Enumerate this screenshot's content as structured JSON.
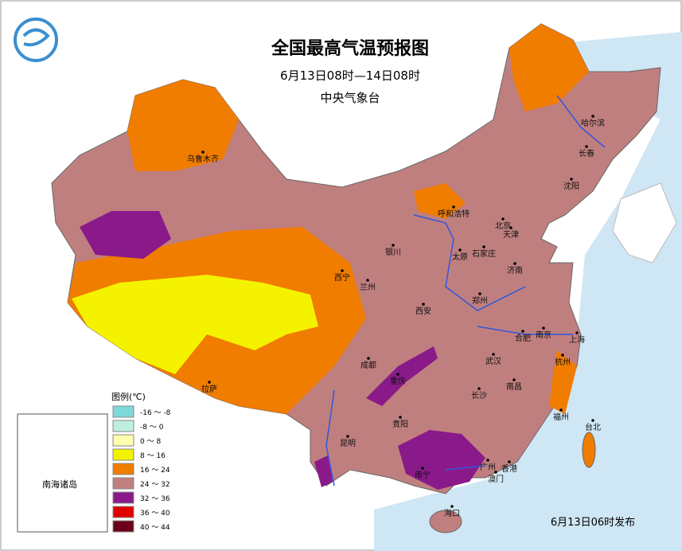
{
  "header": {
    "title": "全国最高气温预报图",
    "time": "6月13日08时—14日08时",
    "agency": "中央气象台"
  },
  "legend": {
    "title": "图例(℃)",
    "items": [
      {
        "label": "-16 ～ -8",
        "color": "#7fd8dc"
      },
      {
        "label": "-8 ～ 0",
        "color": "#bfeee0"
      },
      {
        "label": "0 ～ 8",
        "color": "#ffffb0"
      },
      {
        "label": "8 ～ 16",
        "color": "#f5f200"
      },
      {
        "label": "16 ～ 24",
        "color": "#f07c00"
      },
      {
        "label": "24 ～ 32",
        "color": "#c07f7f"
      },
      {
        "label": "32 ～ 36",
        "color": "#8a1a8a"
      },
      {
        "label": "36 ～ 40",
        "color": "#e00000"
      },
      {
        "label": "40 ～ 44",
        "color": "#6b0018"
      }
    ]
  },
  "cities": [
    "乌鲁木齐",
    "哈尔滨",
    "长春",
    "沈阳",
    "呼和浩特",
    "北京",
    "天津",
    "银川",
    "太原",
    "石家庄",
    "西宁",
    "兰州",
    "济南",
    "郑州",
    "西安",
    "合肥",
    "南京",
    "上海",
    "成都",
    "武汉",
    "杭州",
    "拉萨",
    "重庆",
    "南昌",
    "长沙",
    "贵阳",
    "福州",
    "台北",
    "昆明",
    "南宁",
    "广州",
    "香港",
    "澳门",
    "海口"
  ],
  "inset": {
    "label": "南海诸岛"
  },
  "footer": "6月13日06时发布"
}
